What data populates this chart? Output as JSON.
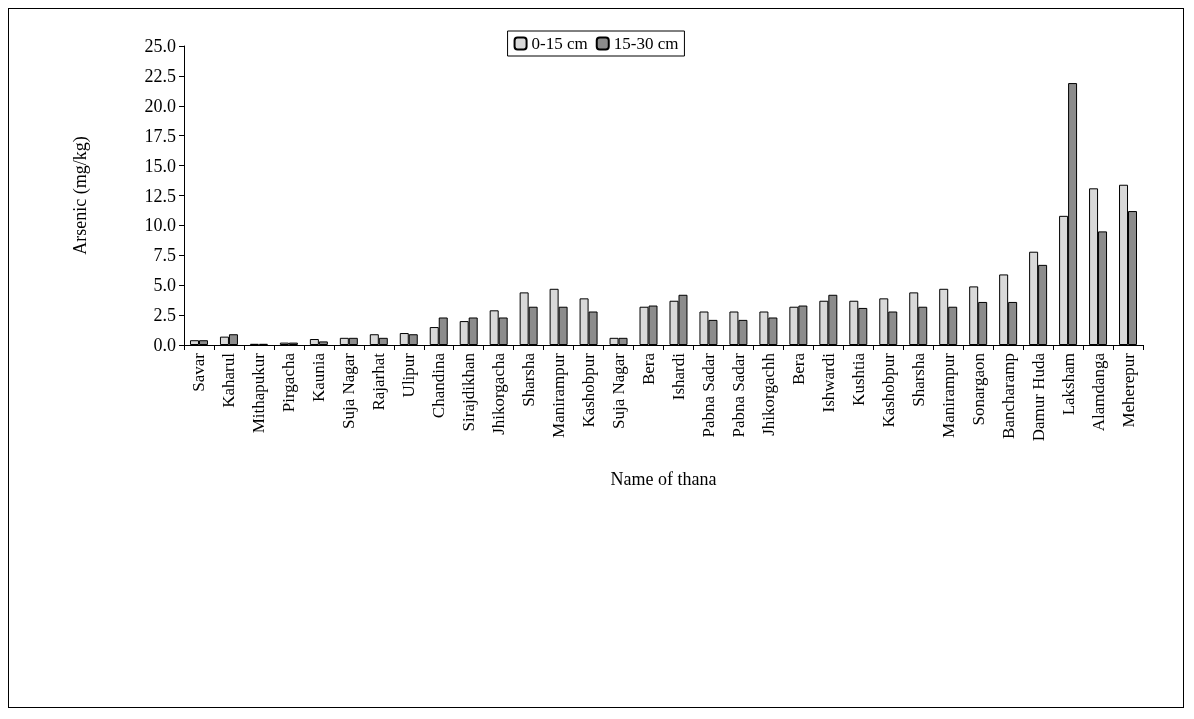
{
  "chart_data": {
    "type": "bar",
    "xlabel": "Name of thana",
    "ylabel": "Arsenic (mg/kg)",
    "categories": [
      "Savar",
      "Kaharul",
      "Mithapukur",
      "Pirgacha",
      "Kaunia",
      "Suja Nagar",
      "Rajarhat",
      "Ulipur",
      "Chandina",
      "Sirajdikhan",
      "Jhikorgacha",
      "Sharsha",
      "Manirampur",
      "Kashobpur",
      "Suja Nagar",
      "Bera",
      "Ishardi",
      "Pabna Sadar",
      "Pabna Sadar",
      "Jhikorgachh",
      "Bera",
      "Ishwardi",
      "Kushtia",
      "Kashobpur",
      "Sharsha",
      "Manirampur",
      "Sonargaon",
      "Bancharamp",
      "Damur Huda",
      "Laksham",
      "Alamdanga",
      "Meherepur"
    ],
    "series": [
      {
        "name": "0-15 cm",
        "color": "#d9d9d9",
        "values": [
          0.4,
          0.7,
          0.1,
          0.2,
          0.5,
          0.6,
          0.9,
          1.0,
          1.5,
          2.0,
          2.9,
          4.4,
          4.7,
          3.9,
          0.6,
          3.2,
          3.7,
          2.8,
          2.8,
          2.8,
          3.2,
          3.7,
          3.7,
          3.9,
          4.4,
          4.7,
          4.9,
          5.9,
          7.8,
          10.8,
          13.1,
          13.4
        ]
      },
      {
        "name": "15-30 cm",
        "color": "#8c8c8c",
        "values": [
          0.4,
          0.9,
          0.1,
          0.2,
          0.3,
          0.6,
          0.6,
          0.9,
          2.3,
          2.3,
          2.3,
          3.2,
          3.2,
          2.8,
          0.6,
          3.3,
          4.2,
          2.1,
          2.1,
          2.3,
          3.3,
          4.2,
          3.1,
          2.8,
          3.2,
          3.2,
          3.6,
          3.6,
          6.7,
          21.9,
          9.5,
          11.2
        ]
      }
    ],
    "ylim": [
      0,
      25
    ],
    "yticks": [
      {
        "value": 0,
        "label": "0.0"
      },
      2.5,
      {
        "value": 5,
        "label": "5.0"
      },
      7.5,
      {
        "value": 10,
        "label": "10.0"
      },
      12.5,
      {
        "value": 15,
        "label": "15.0"
      },
      17.5,
      {
        "value": 20,
        "label": "20.0"
      },
      22.5,
      {
        "value": 25,
        "label": "25.0"
      }
    ],
    "grid": false,
    "legend": "top"
  }
}
